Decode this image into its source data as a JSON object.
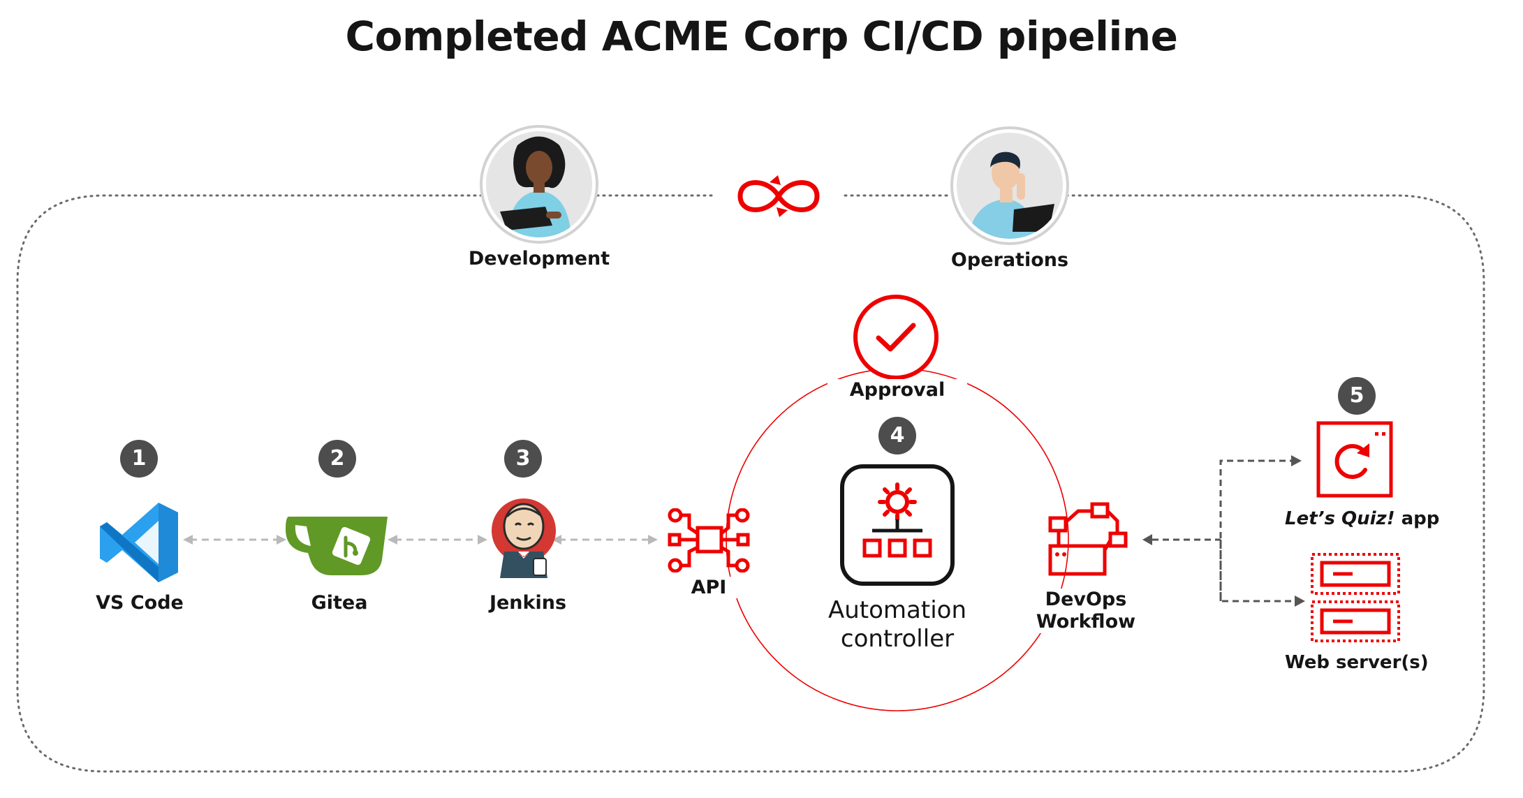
{
  "title": "Completed ACME Corp CI/CD pipeline",
  "people": {
    "development": "Development",
    "operations": "Operations"
  },
  "tools": {
    "vscode": {
      "badge": "1",
      "label": "VS Code"
    },
    "gitea": {
      "badge": "2",
      "label": "Gitea"
    },
    "jenkins": {
      "badge": "3",
      "label": "Jenkins"
    }
  },
  "approval": "Approval",
  "api": "API",
  "controller": {
    "badge": "4",
    "line1": "Automation",
    "line2": "controller"
  },
  "workflow": {
    "line1": "DevOps",
    "line2": "Workflow"
  },
  "targets": {
    "badge": "5",
    "app_italic": "Let’s Quiz!",
    "app_suffix": " app",
    "web": "Web server(s)"
  },
  "colors": {
    "accent_red": "#ee0000",
    "badge_gray": "#4d4d4d",
    "vscode_blue": "#1f8ad8",
    "gitea_green": "#609926"
  },
  "icons": [
    "infinity-loop-icon",
    "checkmark-icon",
    "api-icon",
    "automation-gear-icon",
    "workflow-icon",
    "refresh-app-icon",
    "server-rack-icon"
  ]
}
